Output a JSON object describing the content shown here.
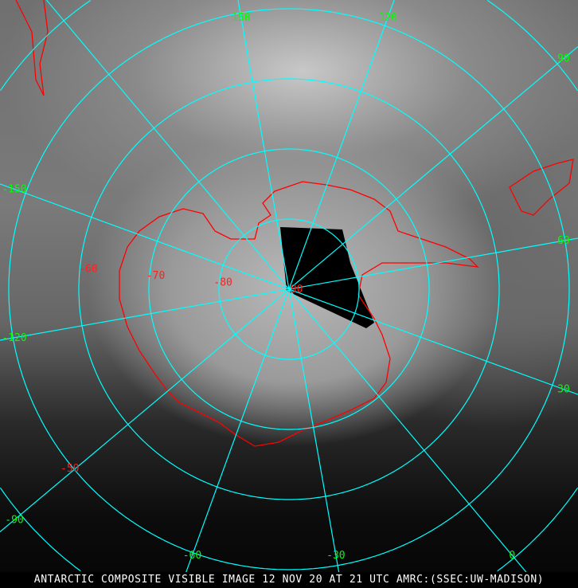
{
  "caption": "ANTARCTIC COMPOSITE VISIBLE IMAGE 12 NOV 20 AT 21 UTC AMRC:(SSEC:UW-MADISON)",
  "projection": "polar stereographic, south pole",
  "colors": {
    "graticule": "#00ffff",
    "coastline": "#ff0000",
    "longitude_labels": "#00ff00",
    "latitude_labels": "#ff2020"
  },
  "longitudes": [
    {
      "value": 150,
      "label": "150"
    },
    {
      "value": 120,
      "label": "120"
    },
    {
      "value": 90,
      "label": "90"
    },
    {
      "value": 60,
      "label": "60"
    },
    {
      "value": 30,
      "label": "30"
    },
    {
      "value": 0,
      "label": "0"
    },
    {
      "value": -30,
      "label": "-30"
    },
    {
      "value": -60,
      "label": "-60"
    },
    {
      "value": -90,
      "label": "-90"
    },
    {
      "value": -120,
      "label": "-120"
    },
    {
      "value": -150,
      "label": "-150"
    },
    {
      "value": 180,
      "label": ""
    }
  ],
  "latitudes": [
    {
      "value": -90,
      "label": "-90"
    },
    {
      "value": -80,
      "label": "-80"
    },
    {
      "value": -70,
      "label": "-70"
    },
    {
      "value": -60,
      "label": "-60"
    },
    {
      "value": -50,
      "label": "-50"
    },
    {
      "value": -40,
      "label": ""
    }
  ]
}
